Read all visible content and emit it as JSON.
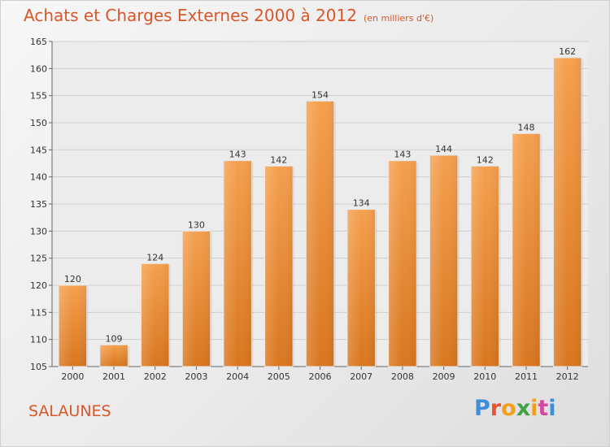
{
  "header": {
    "title": "Achats et Charges Externes 2000 à 2012",
    "unit": "(en milliers d'€)"
  },
  "footer": {
    "commune": "SALAUNES",
    "logo_text": "Proxiti",
    "logo_colors": [
      "#3f8fd6",
      "#e8542f",
      "#f0a01e",
      "#43a047",
      "#f0a01e",
      "#d34a9a",
      "#3f8fd6"
    ]
  },
  "colors": {
    "bar_top": "#f5a04e",
    "bar_bottom": "#d9761e",
    "accent": "#d8572a"
  },
  "chart_data": {
    "type": "bar",
    "title": "Achats et Charges Externes 2000 à 2012",
    "subtitle": "(en milliers d'€)",
    "categories": [
      "2000",
      "2001",
      "2002",
      "2003",
      "2004",
      "2005",
      "2006",
      "2007",
      "2008",
      "2009",
      "2010",
      "2011",
      "2012"
    ],
    "values": [
      120,
      109,
      124,
      130,
      143,
      142,
      154,
      134,
      143,
      144,
      142,
      148,
      162
    ],
    "ylim": [
      105,
      165
    ],
    "yticks": [
      105,
      110,
      115,
      120,
      125,
      130,
      135,
      140,
      145,
      150,
      155,
      160,
      165
    ],
    "grid": true,
    "xlabel": "",
    "ylabel": ""
  }
}
